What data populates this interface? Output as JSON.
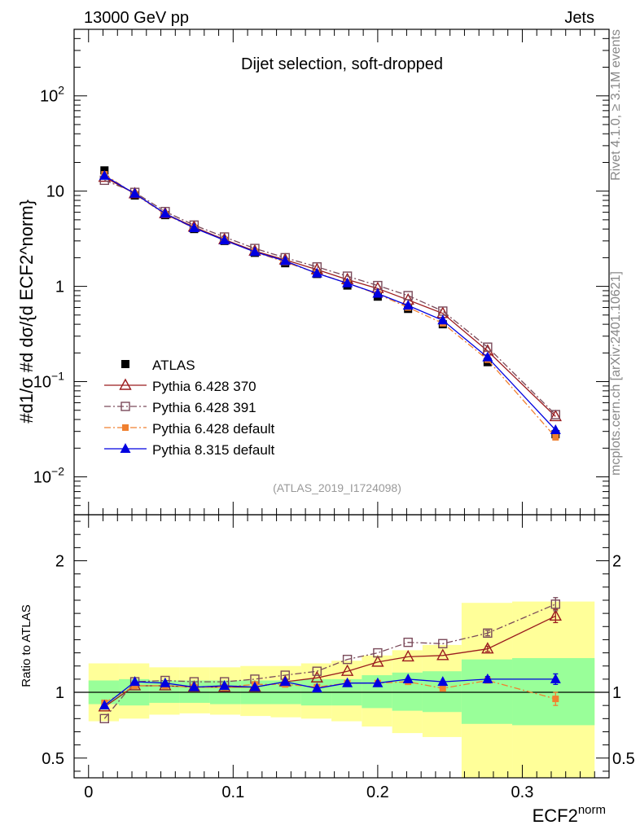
{
  "header": {
    "left": "13000 GeV pp",
    "right": "Jets"
  },
  "side_labels": {
    "rivet": "Rivet 4.1.0, ≥ 3.1M events",
    "mcplots": "mcplots.cern.ch [arXiv:2401.10621]"
  },
  "colors": {
    "atlas": "#000000",
    "py6_370": "#9b1c1f",
    "py6_391": "#7a4a5a",
    "py6_default": "#f08030",
    "py8_default": "#0000e0",
    "band_inner": "#99ff99",
    "band_outer": "#ffff99"
  },
  "chart_data": [
    {
      "panel": "main",
      "type": "scatter",
      "title": "Dijet selection, soft-dropped",
      "analysis_id": "(ATLAS_2019_I1724098)",
      "ylabel": "#d1/σ #d dσ/{d ECF2^norm}",
      "yscale": "log",
      "ylim": [
        0.004,
        500
      ],
      "xlim": [
        -0.01,
        0.36
      ],
      "y_ticks": [
        {
          "v": 0.01,
          "base": "10",
          "exp": "−2"
        },
        {
          "v": 0.1,
          "base": "10",
          "exp": "−1"
        },
        {
          "v": 1,
          "base": "1",
          "exp": ""
        },
        {
          "v": 10,
          "base": "10",
          "exp": ""
        },
        {
          "v": 100,
          "base": "10",
          "exp": "2"
        }
      ],
      "x": [
        0.011,
        0.032,
        0.053,
        0.073,
        0.094,
        0.115,
        0.136,
        0.158,
        0.179,
        0.2,
        0.221,
        0.245,
        0.276,
        0.323
      ],
      "series": [
        {
          "name": "ATLAS",
          "key": "atlas",
          "marker": "filled-square",
          "line": "none",
          "values": [
            16.5,
            9.0,
            5.6,
            4.0,
            3.0,
            2.25,
            1.75,
            1.35,
            1.02,
            0.78,
            0.58,
            0.4,
            0.16,
            0.028
          ]
        },
        {
          "name": "Pythia 6.428 370",
          "key": "py6_370",
          "marker": "open-triangle",
          "line": "solid",
          "values": [
            14.0,
            9.4,
            5.8,
            4.2,
            3.1,
            2.35,
            1.9,
            1.5,
            1.18,
            0.95,
            0.72,
            0.52,
            0.21,
            0.043
          ]
        },
        {
          "name": "Pythia 6.428 391",
          "key": "py6_391",
          "marker": "open-square",
          "line": "dashdot",
          "values": [
            13.0,
            9.7,
            6.1,
            4.4,
            3.3,
            2.5,
            2.0,
            1.6,
            1.28,
            1.02,
            0.8,
            0.55,
            0.23,
            0.045
          ]
        },
        {
          "name": "Pythia 6.428 default",
          "key": "py6_default",
          "marker": "filled-square-small",
          "line": "dashdot",
          "values": [
            15.0,
            9.3,
            5.7,
            4.1,
            3.05,
            2.3,
            1.8,
            1.38,
            1.08,
            0.83,
            0.6,
            0.41,
            0.17,
            0.026
          ]
        },
        {
          "name": "Pythia 8.315 default",
          "key": "py8_default",
          "marker": "filled-triangle",
          "line": "solid",
          "values": [
            14.5,
            9.4,
            5.8,
            4.1,
            3.05,
            2.3,
            1.85,
            1.37,
            1.08,
            0.84,
            0.63,
            0.44,
            0.18,
            0.031
          ]
        }
      ]
    },
    {
      "panel": "ratio",
      "type": "scatter",
      "ylabel": "Ratio to ATLAS",
      "xlabel": "ECF2",
      "xlabel_sup": "norm",
      "ylim": [
        0.35,
        2.35
      ],
      "xlim": [
        -0.01,
        0.36
      ],
      "y_ticks": [
        {
          "v": 0.5,
          "label": "0.5"
        },
        {
          "v": 1,
          "label": "1"
        },
        {
          "v": 2,
          "label": "2"
        }
      ],
      "x_ticks": [
        {
          "v": 0,
          "label": "0"
        },
        {
          "v": 0.1,
          "label": "0.1"
        },
        {
          "v": 0.2,
          "label": "0.2"
        },
        {
          "v": 0.3,
          "label": "0.3"
        }
      ],
      "reference_line": 1,
      "bin_edges": [
        0.0,
        0.021,
        0.042,
        0.063,
        0.084,
        0.105,
        0.126,
        0.147,
        0.168,
        0.189,
        0.21,
        0.231,
        0.258,
        0.293,
        0.35
      ],
      "band_inner": [
        [
          0.91,
          1.09
        ],
        [
          0.9,
          1.1
        ],
        [
          0.92,
          1.09
        ],
        [
          0.92,
          1.09
        ],
        [
          0.91,
          1.09
        ],
        [
          0.91,
          1.09
        ],
        [
          0.91,
          1.09
        ],
        [
          0.9,
          1.1
        ],
        [
          0.9,
          1.1
        ],
        [
          0.88,
          1.13
        ],
        [
          0.86,
          1.15
        ],
        [
          0.85,
          1.16
        ],
        [
          0.76,
          1.25
        ],
        [
          0.75,
          1.26
        ]
      ],
      "band_outer": [
        [
          0.78,
          1.22
        ],
        [
          0.8,
          1.22
        ],
        [
          0.83,
          1.19
        ],
        [
          0.84,
          1.19
        ],
        [
          0.83,
          1.19
        ],
        [
          0.82,
          1.2
        ],
        [
          0.81,
          1.2
        ],
        [
          0.8,
          1.22
        ],
        [
          0.78,
          1.24
        ],
        [
          0.74,
          1.28
        ],
        [
          0.69,
          1.32
        ],
        [
          0.66,
          1.36
        ],
        [
          0.35,
          1.68
        ],
        [
          0.35,
          1.69
        ]
      ],
      "series": [
        {
          "name": "Pythia 6.428 370",
          "key": "py6_370",
          "marker": "open-triangle",
          "line": "solid",
          "values": [
            0.89,
            1.05,
            1.05,
            1.04,
            1.04,
            1.04,
            1.08,
            1.11,
            1.16,
            1.23,
            1.27,
            1.28,
            1.33,
            1.58
          ],
          "errors": [
            0,
            0,
            0,
            0,
            0,
            0,
            0,
            0,
            0,
            0,
            0,
            0,
            0.02,
            0.05
          ]
        },
        {
          "name": "Pythia 6.428 391",
          "key": "py6_391",
          "marker": "open-square",
          "line": "dashdot",
          "values": [
            0.8,
            1.08,
            1.09,
            1.08,
            1.08,
            1.1,
            1.13,
            1.16,
            1.25,
            1.3,
            1.38,
            1.37,
            1.45,
            1.67
          ],
          "errors": [
            0,
            0,
            0,
            0,
            0,
            0,
            0,
            0,
            0,
            0,
            0,
            0,
            0.02,
            0.05
          ]
        },
        {
          "name": "Pythia 6.428 default",
          "key": "py6_default",
          "marker": "filled-square-small",
          "line": "dashdot",
          "values": [
            0.92,
            1.05,
            1.05,
            1.04,
            1.04,
            1.06,
            1.06,
            1.04,
            1.07,
            1.07,
            1.08,
            1.03,
            1.09,
            0.95
          ],
          "errors": [
            0,
            0,
            0,
            0,
            0,
            0,
            0,
            0,
            0,
            0,
            0,
            0,
            0.02,
            0.05
          ]
        },
        {
          "name": "Pythia 8.315 default",
          "key": "py8_default",
          "marker": "filled-triangle",
          "line": "solid",
          "values": [
            0.9,
            1.08,
            1.07,
            1.04,
            1.05,
            1.04,
            1.08,
            1.03,
            1.07,
            1.07,
            1.1,
            1.08,
            1.1,
            1.1
          ],
          "errors": [
            0,
            0,
            0,
            0,
            0,
            0,
            0,
            0,
            0,
            0,
            0,
            0,
            0.02,
            0.04
          ]
        }
      ]
    }
  ]
}
